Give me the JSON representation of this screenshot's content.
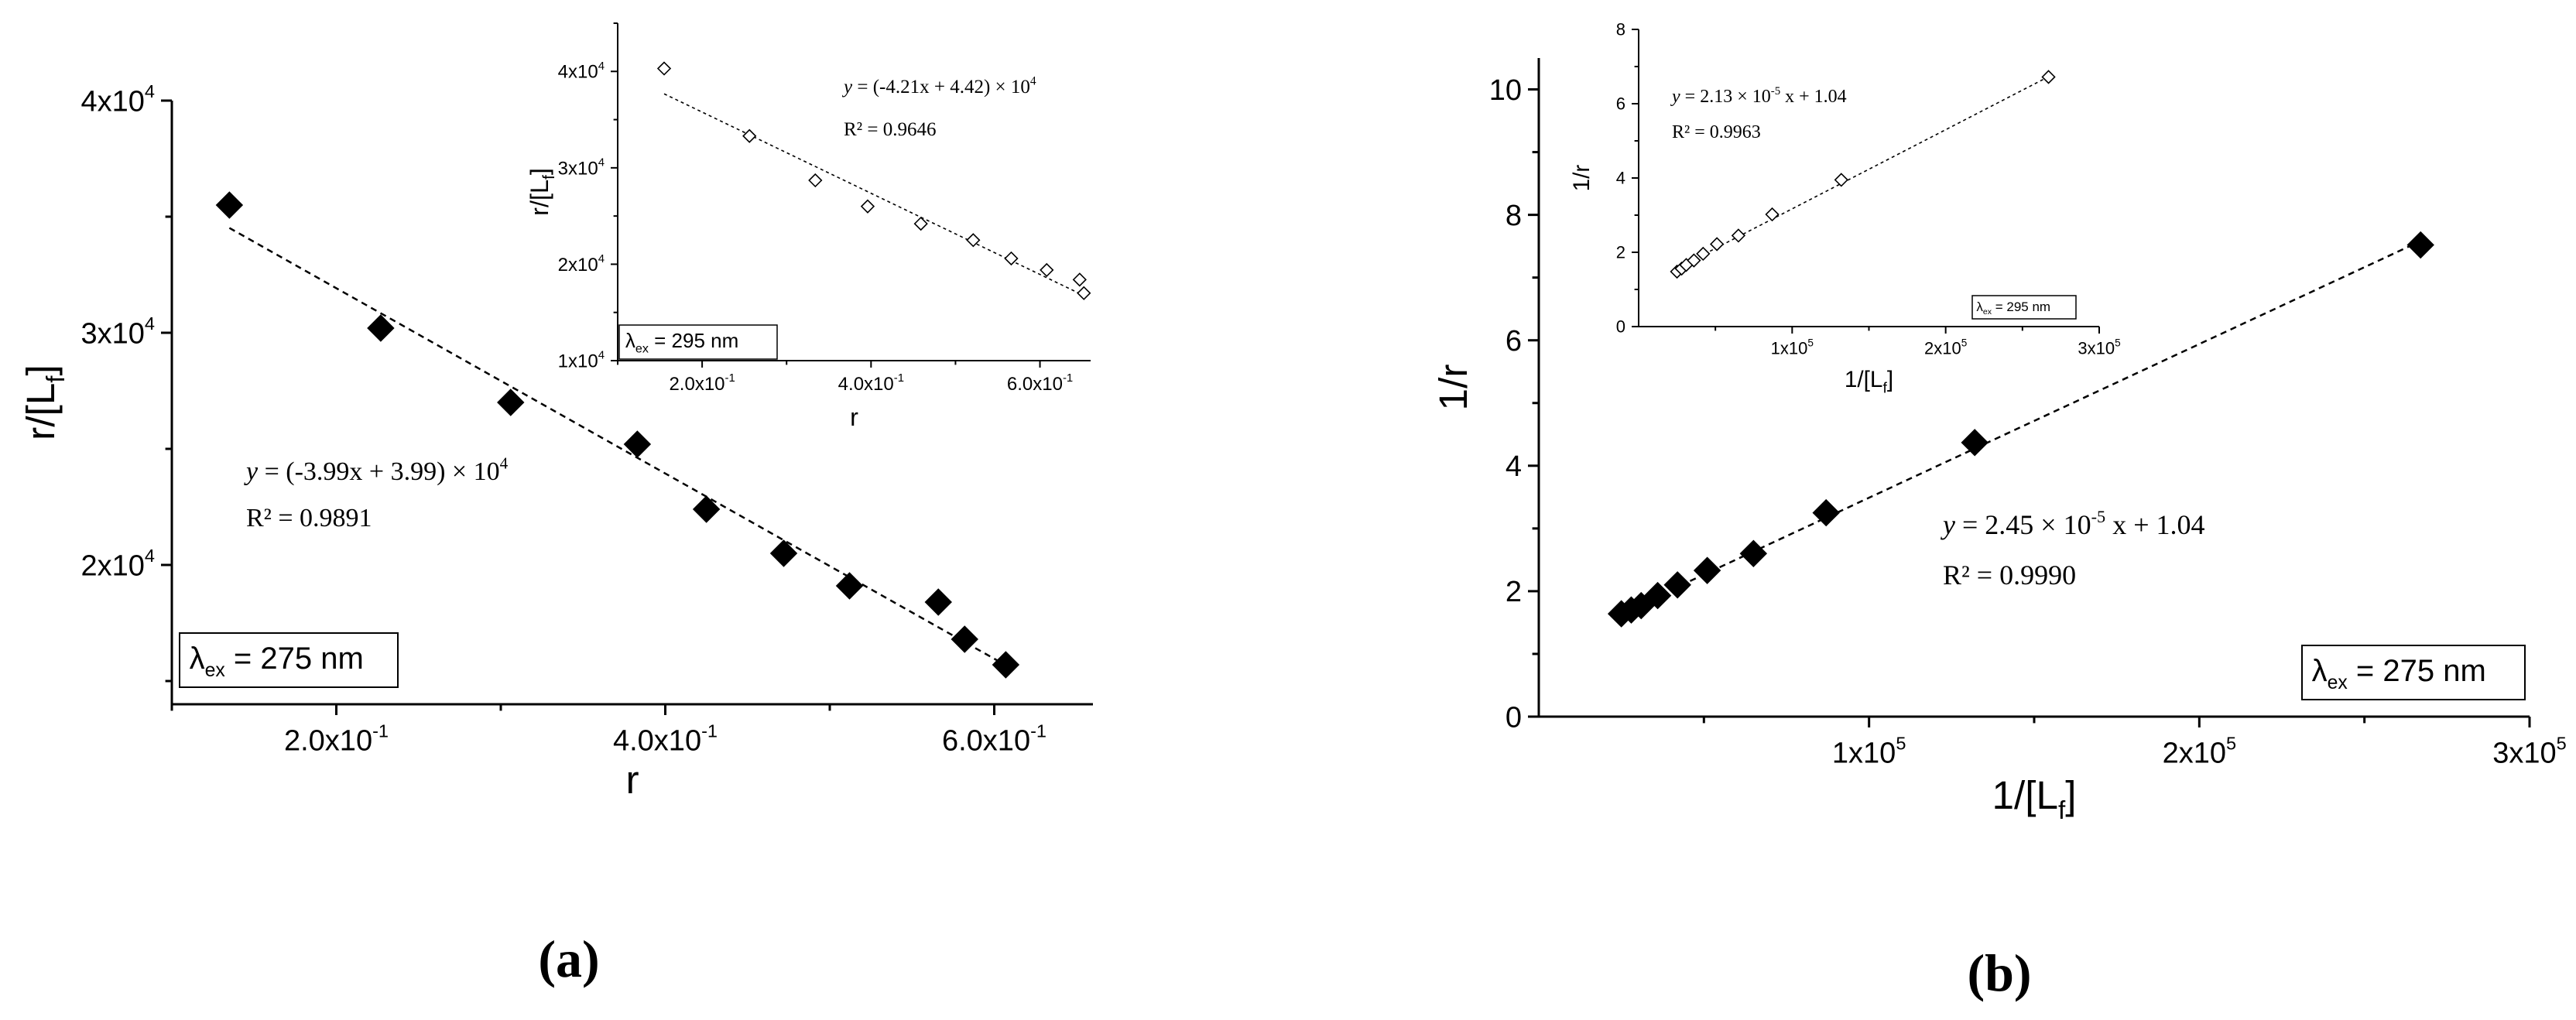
{
  "figure": {
    "panel_a_label": "(a)",
    "panel_b_label": "(b)"
  },
  "chart_data": [
    {
      "id": "a_main",
      "type": "scatter",
      "xlabel": "r",
      "ylabel": "r/[L",
      "ylabel_sub": "f",
      "ylabel_close": "]",
      "xlim": [
        0.1,
        0.66
      ],
      "ylim": [
        14000,
        40000
      ],
      "xticks": [
        0.2,
        0.4,
        0.6
      ],
      "xtick_labels": [
        {
          "m": "2.0x10",
          "e": "-1"
        },
        {
          "m": "4.0x10",
          "e": "-1"
        },
        {
          "m": "6.0x10",
          "e": "-1"
        }
      ],
      "yticks": [
        20000,
        30000,
        40000
      ],
      "ytick_labels": [
        {
          "m": "2x10",
          "e": "4"
        },
        {
          "m": "3x10",
          "e": "4"
        },
        {
          "m": "4x10",
          "e": "4"
        }
      ],
      "marker": "filled-diamond",
      "points": [
        [
          0.135,
          35500
        ],
        [
          0.227,
          30200
        ],
        [
          0.306,
          27000
        ],
        [
          0.383,
          25200
        ],
        [
          0.425,
          22400
        ],
        [
          0.472,
          20500
        ],
        [
          0.512,
          19100
        ],
        [
          0.566,
          18400
        ],
        [
          0.582,
          16800
        ],
        [
          0.607,
          15700
        ]
      ],
      "fit": {
        "slope": -39900,
        "intercept": 39900,
        "x_range": [
          0.135,
          0.607
        ]
      },
      "equation": {
        "pre": "y",
        "body": " = (-3.99x + 3.99) × 10",
        "sup": "4"
      },
      "r2": "R² = 0.9891",
      "legend": {
        "lambda": "λ",
        "sub": "ex",
        "text": " = 275 nm",
        "position": "bottom-left"
      }
    },
    {
      "id": "a_inset",
      "type": "scatter",
      "xlabel": "r",
      "ylabel": "r/[L",
      "ylabel_sub": "f",
      "ylabel_close": "]",
      "xlim": [
        0.1,
        0.66
      ],
      "ylim": [
        10000,
        45000
      ],
      "xticks": [
        0.2,
        0.4,
        0.6
      ],
      "xtick_labels": [
        {
          "m": "2.0x10",
          "e": "-1"
        },
        {
          "m": "4.0x10",
          "e": "-1"
        },
        {
          "m": "6.0x10",
          "e": "-1"
        }
      ],
      "yticks": [
        10000,
        20000,
        30000,
        40000
      ],
      "ytick_labels": [
        {
          "m": "1x10",
          "e": "4"
        },
        {
          "m": "2x10",
          "e": "4"
        },
        {
          "m": "3x10",
          "e": "4"
        },
        {
          "m": "4x10",
          "e": "4"
        }
      ],
      "marker": "open-diamond",
      "points": [
        [
          0.155,
          40300
        ],
        [
          0.256,
          33300
        ],
        [
          0.334,
          28700
        ],
        [
          0.396,
          26000
        ],
        [
          0.459,
          24200
        ],
        [
          0.521,
          22500
        ],
        [
          0.566,
          20600
        ],
        [
          0.608,
          19400
        ],
        [
          0.647,
          18400
        ],
        [
          0.652,
          17000
        ]
      ],
      "fit": {
        "slope": -42100,
        "intercept": 44200,
        "x_range": [
          0.155,
          0.652
        ]
      },
      "equation": {
        "pre": "y",
        "body": " = (-4.21x + 4.42) × 10",
        "sup": "4"
      },
      "r2": "R² = 0.9646",
      "legend": {
        "lambda": "λ",
        "sub": "ex",
        "text": " = 295 nm",
        "position": "bottom-left"
      }
    },
    {
      "id": "b_main",
      "type": "scatter",
      "xlabel": "1/[L",
      "xlabel_sub": "f",
      "xlabel_close": "]",
      "ylabel": "1/r",
      "xlim": [
        0,
        300000
      ],
      "ylim": [
        0,
        10.5
      ],
      "xticks": [
        100000,
        200000,
        300000
      ],
      "xtick_labels": [
        {
          "m": "1x10",
          "e": "5"
        },
        {
          "m": "2x10",
          "e": "5"
        },
        {
          "m": "3x10",
          "e": "5"
        }
      ],
      "yticks": [
        0,
        2,
        4,
        6,
        8,
        10
      ],
      "ytick_labels": [
        "0",
        "2",
        "4",
        "6",
        "8",
        "10"
      ],
      "marker": "filled-diamond",
      "points": [
        [
          25000,
          1.64
        ],
        [
          28000,
          1.7
        ],
        [
          31000,
          1.77
        ],
        [
          36000,
          1.93
        ],
        [
          42000,
          2.1
        ],
        [
          51000,
          2.33
        ],
        [
          65000,
          2.6
        ],
        [
          87000,
          3.25
        ],
        [
          132000,
          4.37
        ],
        [
          267000,
          7.52
        ]
      ],
      "fit": {
        "slope": 2.45e-05,
        "intercept": 1.04,
        "x_range": [
          25000,
          267000
        ]
      },
      "equation": {
        "pre": "y",
        "body": " = 2.45 × 10",
        "sup": "-5",
        "post": " x + 1.04"
      },
      "r2": "R² = 0.9990",
      "legend": {
        "lambda": "λ",
        "sub": "ex",
        "text": " = 275 nm",
        "position": "bottom-right"
      }
    },
    {
      "id": "b_inset",
      "type": "scatter",
      "xlabel": "1/[L",
      "xlabel_sub": "f",
      "xlabel_close": "]",
      "ylabel": "1/r",
      "xlim": [
        0,
        300000
      ],
      "ylim": [
        0,
        8
      ],
      "xticks": [
        100000,
        200000,
        300000
      ],
      "xtick_labels": [
        {
          "m": "1x10",
          "e": "5"
        },
        {
          "m": "2x10",
          "e": "5"
        },
        {
          "m": "3x10",
          "e": "5"
        }
      ],
      "yticks": [
        0,
        2,
        4,
        6,
        8
      ],
      "ytick_labels": [
        "0",
        "2",
        "4",
        "6",
        "8"
      ],
      "marker": "open-diamond",
      "points": [
        [
          25000,
          1.48
        ],
        [
          28000,
          1.56
        ],
        [
          31000,
          1.66
        ],
        [
          36000,
          1.78
        ],
        [
          42000,
          1.96
        ],
        [
          51000,
          2.22
        ],
        [
          65000,
          2.45
        ],
        [
          87000,
          3.02
        ],
        [
          132000,
          3.95
        ],
        [
          267000,
          6.72
        ]
      ],
      "fit": {
        "slope": 2.13e-05,
        "intercept": 1.04,
        "x_range": [
          25000,
          267000
        ]
      },
      "equation": {
        "pre": "y",
        "body": " = 2.13 × 10",
        "sup": "-5",
        "post": " x + 1.04"
      },
      "r2": "R² = 0.9963",
      "legend": {
        "lambda": "λ",
        "sub": "ex",
        "text": " = 295 nm",
        "position": "bottom-right"
      }
    }
  ]
}
